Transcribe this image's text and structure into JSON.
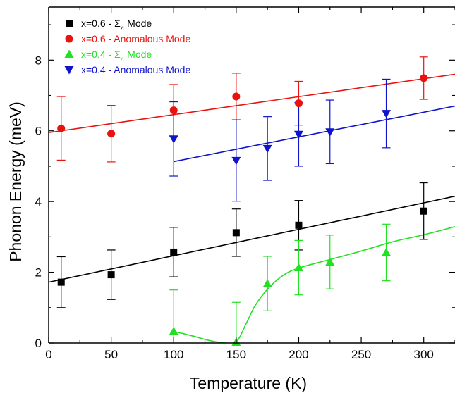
{
  "chart_data": {
    "type": "scatter",
    "title": "",
    "xlabel": "Temperature (K)",
    "ylabel": "Phonon Energy (meV)",
    "xlim": [
      0,
      325
    ],
    "ylim": [
      0,
      9.5
    ],
    "xticks": [
      0,
      50,
      100,
      150,
      200,
      250,
      300
    ],
    "yticks": [
      0,
      2,
      4,
      6,
      8
    ],
    "grid": false,
    "legend_position": "top-left",
    "series": [
      {
        "name": "x=0.6 - Σ",
        "name_sub": "4",
        "name_suffix": " Mode",
        "color": "#000000",
        "marker": "square",
        "x": [
          10,
          50,
          100,
          150,
          200,
          300
        ],
        "y": [
          1.72,
          1.93,
          2.57,
          3.12,
          3.33,
          3.73
        ],
        "err": [
          0.72,
          0.7,
          0.7,
          0.67,
          0.7,
          0.8
        ],
        "fit": {
          "kind": "linear",
          "points": [
            [
              0,
              1.72
            ],
            [
              325,
              4.15
            ]
          ]
        }
      },
      {
        "name": "x=0.6 - Anomalous Mode",
        "color": "#e8130f",
        "marker": "circle",
        "x": [
          10,
          50,
          100,
          150,
          200,
          300
        ],
        "y": [
          6.07,
          5.92,
          6.58,
          6.97,
          6.78,
          7.49
        ],
        "err": [
          0.9,
          0.8,
          0.73,
          0.66,
          0.62,
          0.6
        ],
        "fit": {
          "kind": "linear",
          "points": [
            [
              0,
              5.95
            ],
            [
              325,
              7.6
            ]
          ]
        }
      },
      {
        "name": "x=0.4 - Σ",
        "name_sub": "4",
        "name_suffix": " Mode",
        "color": "#22e022",
        "marker": "triangle-up",
        "x": [
          100,
          150,
          175,
          200,
          225,
          270
        ],
        "y": [
          0.33,
          0.02,
          1.68,
          2.13,
          2.29,
          2.56
        ],
        "err": [
          1.17,
          1.13,
          0.77,
          0.77,
          0.76,
          0.8
        ],
        "fit": {
          "kind": "curve",
          "points": [
            [
              100,
              0.33
            ],
            [
              115,
              0.2
            ],
            [
              130,
              0.06
            ],
            [
              142,
              0.0
            ],
            [
              150,
              0.02
            ],
            [
              158,
              0.55
            ],
            [
              165,
              1.05
            ],
            [
              175,
              1.52
            ],
            [
              187,
              1.9
            ],
            [
              200,
              2.12
            ],
            [
              225,
              2.36
            ],
            [
              250,
              2.6
            ],
            [
              275,
              2.86
            ],
            [
              300,
              3.06
            ],
            [
              325,
              3.29
            ]
          ]
        }
      },
      {
        "name": "x=0.4 - Anomalous Mode",
        "color": "#0f13cc",
        "marker": "triangle-down",
        "x": [
          100,
          150,
          175,
          200,
          225,
          270
        ],
        "y": [
          5.77,
          5.16,
          5.5,
          5.9,
          5.97,
          6.49
        ],
        "err": [
          1.05,
          1.15,
          0.9,
          0.9,
          0.9,
          0.97
        ],
        "fit": {
          "kind": "linear",
          "points": [
            [
              100,
              5.13
            ],
            [
              325,
              6.7
            ]
          ]
        }
      }
    ]
  }
}
